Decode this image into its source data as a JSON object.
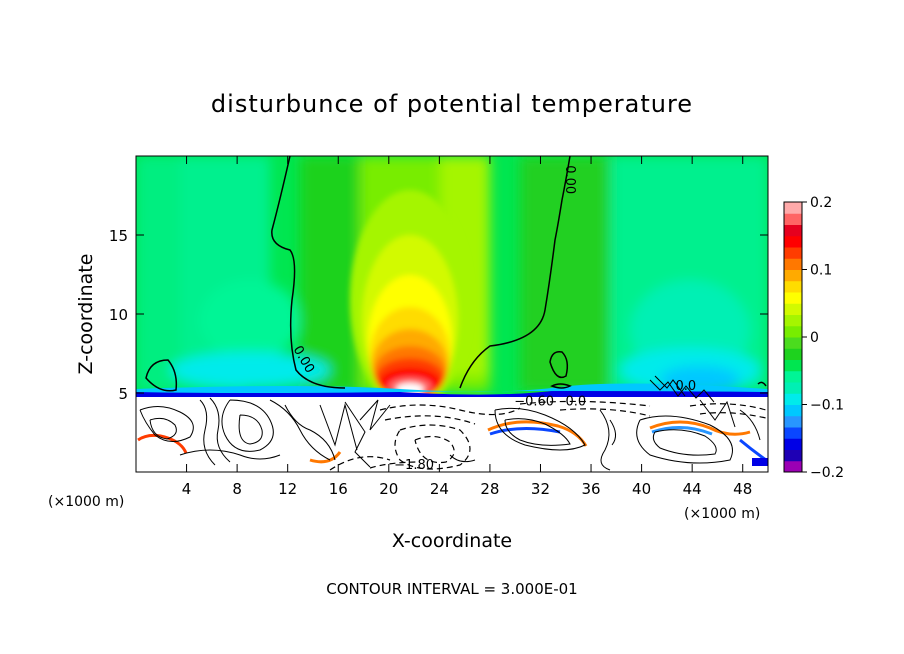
{
  "chart_data": {
    "type": "heatmap",
    "title": "disturbunce of potential temperature",
    "xlabel": "X-coordinate",
    "ylabel": "Z-coordinate",
    "x_unit": "(×1000 m)",
    "x_unit_right": "(×1000 m)",
    "xlim": [
      0,
      50
    ],
    "ylim": [
      0,
      20
    ],
    "xticks": [
      4,
      8,
      12,
      16,
      20,
      24,
      28,
      32,
      36,
      40,
      44,
      48
    ],
    "yticks": [
      5,
      10,
      15
    ],
    "colorbar": {
      "range": [
        -0.2,
        0.2
      ],
      "ticks": [
        {
          "value": 0.2,
          "label": "0.2"
        },
        {
          "value": 0.1,
          "label": "0.1"
        },
        {
          "value": 0.0,
          "label": "0"
        },
        {
          "value": -0.1,
          "label": "−0.1"
        },
        {
          "value": -0.2,
          "label": "−0.2"
        }
      ],
      "colors": [
        "#9b00b4",
        "#1e00b4",
        "#0000e6",
        "#0a46ff",
        "#2896ff",
        "#00c8ff",
        "#00ebeb",
        "#00f0b4",
        "#00f596",
        "#00e650",
        "#1ed21e",
        "#4bdc1e",
        "#78ed00",
        "#a5f500",
        "#d2fa00",
        "#ffff00",
        "#ffdc00",
        "#ffaa00",
        "#ff7800",
        "#ff3c00",
        "#ff0000",
        "#e6001e",
        "#ff6464",
        "#ffaaaa"
      ]
    },
    "contour_labels": [
      {
        "text": "0.00",
        "x": 34.0,
        "z": 18.5
      },
      {
        "text": "0.00",
        "x": 13.0,
        "z": 7.0
      },
      {
        "text": "−0.60",
        "x": 31.5,
        "z": 4.2
      },
      {
        "text": "−1.80",
        "x": 22.0,
        "z": 0.2
      },
      {
        "text": "0.0",
        "x": 34.8,
        "z": 4.2
      },
      {
        "text": "0.0",
        "x": 43.5,
        "z": 5.2
      }
    ],
    "features": {
      "max_anomaly_center": {
        "x": 22,
        "z": 5.5
      },
      "interface_level_z": 5
    },
    "grid": false
  },
  "footer": {
    "contour_interval": "CONTOUR INTERVAL = 3.000E-01"
  }
}
